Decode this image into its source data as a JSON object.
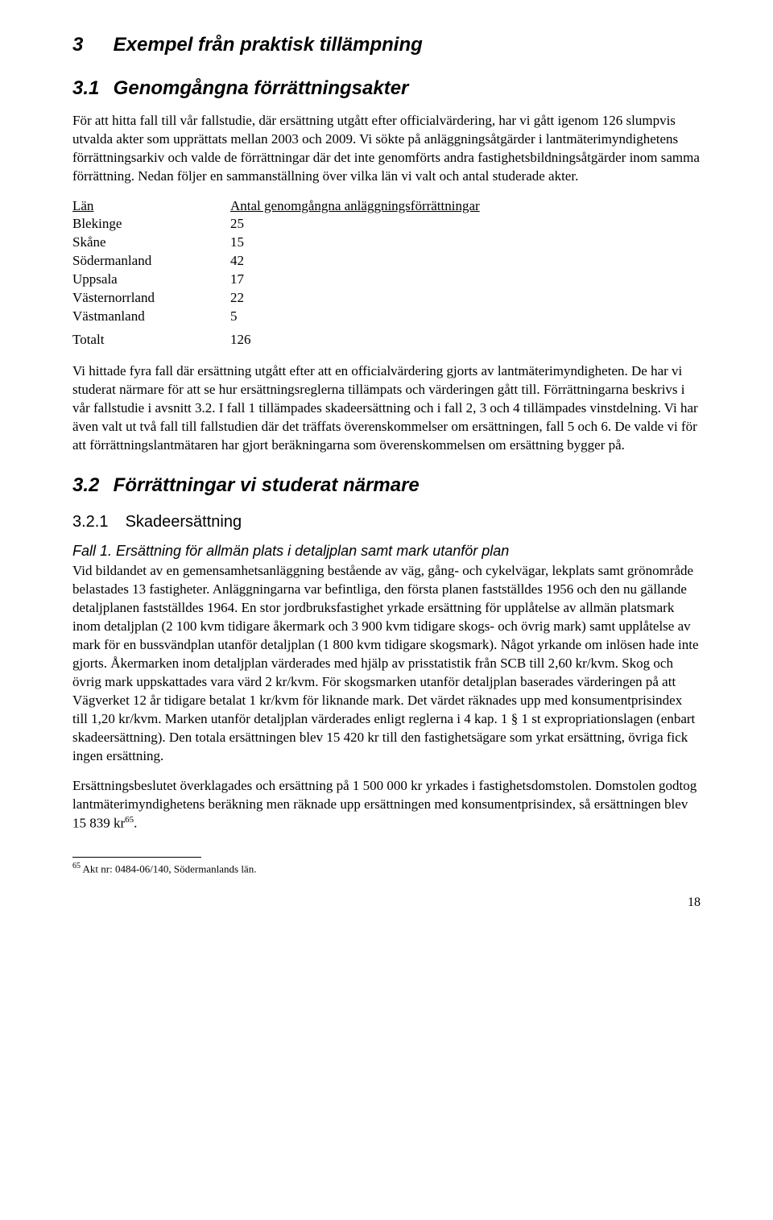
{
  "section3": {
    "number": "3",
    "title": "Exempel från praktisk tillämpning"
  },
  "section31": {
    "number": "3.1",
    "title": "Genomgångna förrättningsakter",
    "para1": "För att hitta fall till vår fallstudie, där ersättning utgått efter officialvärdering, har vi gått igenom 126 slumpvis utvalda akter som upprättats mellan 2003 och 2009. Vi sökte på anläggningsåtgärder i lantmäterimyndighetens förrättningsarkiv och valde de förrättningar där det inte genomförts andra fastighetsbildningsåtgärder inom samma förrättning. Nedan följer en sammanställning över vilka län vi valt och antal studerade akter.",
    "table": {
      "header_lan": "Län",
      "header_val": "Antal genomgångna anläggningsförrättningar",
      "rows": [
        {
          "lan": "Blekinge",
          "val": "25"
        },
        {
          "lan": "Skåne",
          "val": "15"
        },
        {
          "lan": "Södermanland",
          "val": "42"
        },
        {
          "lan": "Uppsala",
          "val": "17"
        },
        {
          "lan": "Västernorrland",
          "val": "22"
        },
        {
          "lan": "Västmanland",
          "val": "5"
        }
      ],
      "total_label": "Totalt",
      "total_val": "126"
    },
    "para2": "Vi hittade fyra fall där ersättning utgått efter att en officialvärdering gjorts av lantmäterimyndigheten. De har vi studerat närmare för att se hur ersättningsreglerna tillämpats och värderingen gått till. Förrättningarna beskrivs i vår fallstudie i avsnitt 3.2. I fall 1 tillämpades skadeersättning och i fall 2, 3 och 4 tillämpades vinstdelning. Vi har även valt ut två fall till fallstudien där det träffats överenskommelser om ersättningen, fall 5 och 6. De valde vi för att förrättningslantmätaren har gjort beräkningarna som överenskommelsen om ersättning bygger på."
  },
  "section32": {
    "number": "3.2",
    "title": "Förrättningar vi studerat närmare"
  },
  "section321": {
    "number": "3.2.1",
    "title": "Skadeersättning"
  },
  "fall1": {
    "title": "Fall 1. Ersättning för allmän plats i detaljplan samt mark utanför plan",
    "para1_text": "Vid bildandet av en gemensamhetsanläggning bestående av väg, gång- och cykelvägar, lekplats samt grönområde belastades 13 fastigheter. Anläggningarna var befintliga, den första planen fastställdes 1956 och den nu gällande detaljplanen fastställdes 1964. En stor jordbruksfastighet yrkade ersättning för upplåtelse av allmän platsmark inom detaljplan (2 100 kvm tidigare åkermark och 3 900 kvm tidigare skogs- och övrig mark) samt upplåtelse av mark för en bussvändplan utanför detaljplan (1 800 kvm tidigare skogsmark). Något yrkande om inlösen hade inte gjorts. Åkermarken inom detaljplan värderades med hjälp av prisstatistik från SCB till 2,60 kr/kvm. Skog och övrig mark uppskattades vara värd 2 kr/kvm. För skogsmarken utanför detaljplan baserades värderingen på att Vägverket 12 år tidigare betalat 1 kr/kvm för liknande mark. Det värdet räknades upp med konsumentprisindex till 1,20 kr/kvm. Marken utanför detaljplan värderades enligt reglerna i 4 kap. 1 § 1 st expropriationslagen (enbart skadeersättning). Den totala ersättningen blev 15 420 kr till den fastighetsägare som yrkat ersättning, övriga fick ingen ersättning.",
    "para2_pre": "Ersättningsbeslutet överklagades och ersättning på 1 500 000 kr yrkades i fastighetsdomstolen. Domstolen godtog lantmäterimyndighetens beräkning men räknade upp ersättningen med konsumentprisindex, så ersättningen blev 15 839 kr",
    "para2_sup": "65",
    "para2_post": "."
  },
  "footnote": {
    "num": "65",
    "text": " Akt nr: 0484-06/140, Södermanlands län."
  },
  "page_number": "18"
}
